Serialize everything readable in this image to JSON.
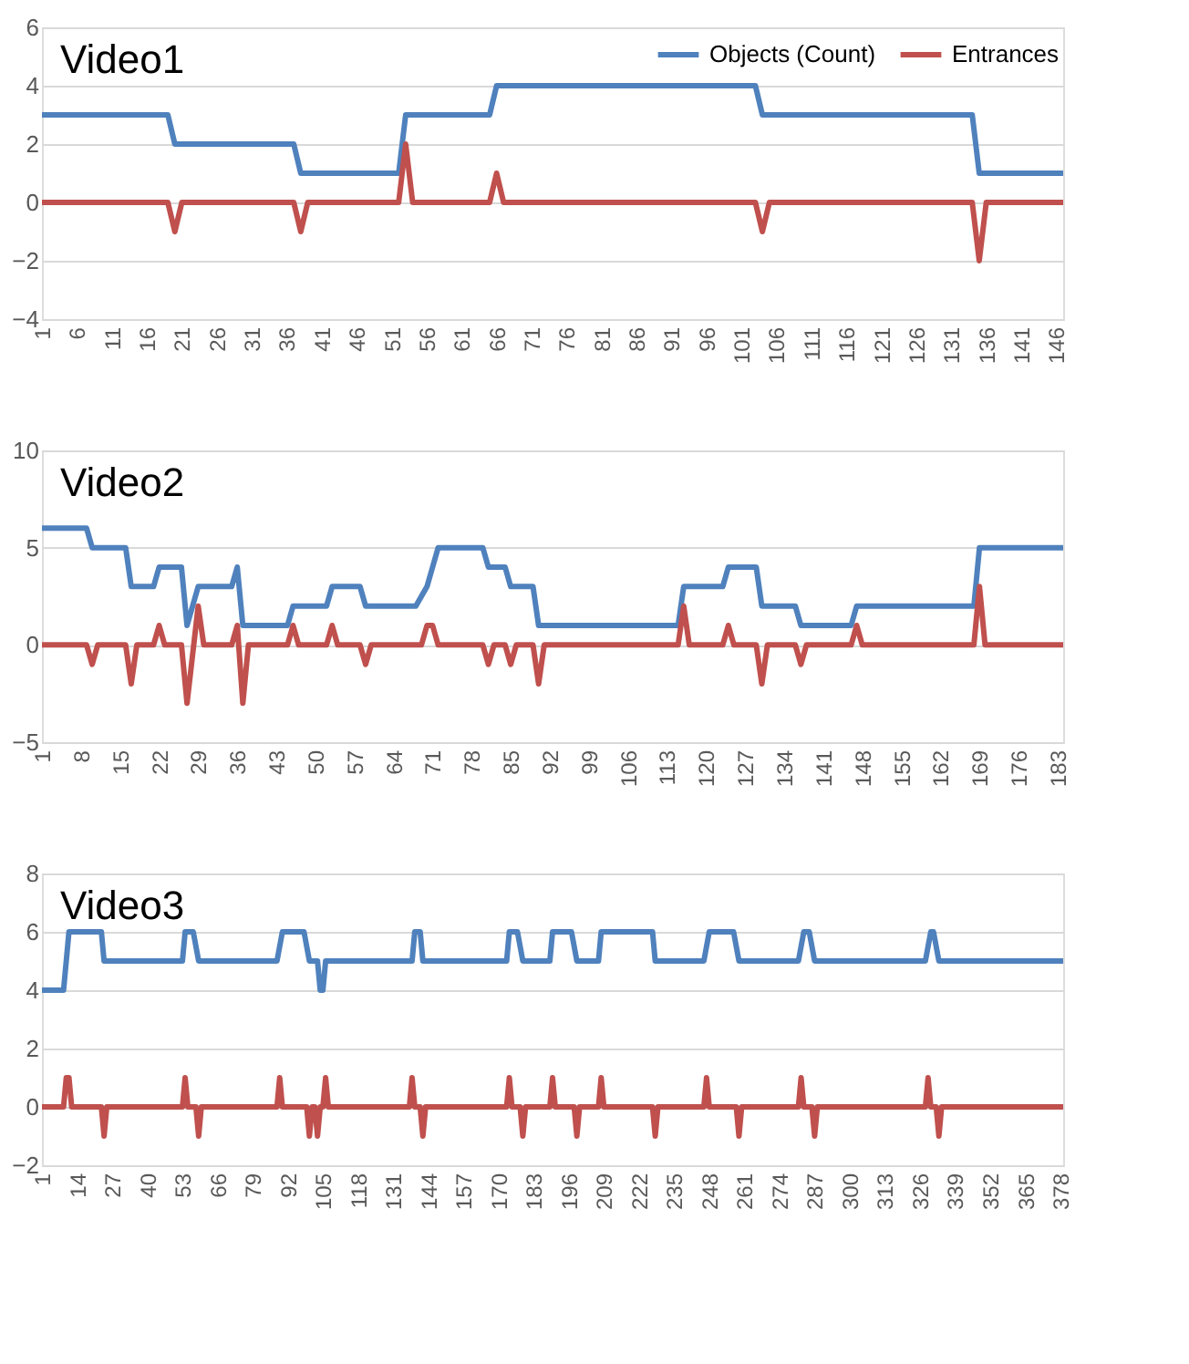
{
  "chart_data": [
    {
      "type": "line",
      "title": "Video1",
      "xlim": [
        1,
        147
      ],
      "xticks": [
        1,
        6,
        11,
        16,
        21,
        26,
        31,
        36,
        41,
        46,
        51,
        56,
        61,
        66,
        71,
        76,
        81,
        86,
        91,
        96,
        101,
        106,
        111,
        116,
        121,
        126,
        131,
        136,
        141,
        146
      ],
      "ylim": [
        -4,
        6
      ],
      "yticks": [
        -4,
        -2,
        0,
        2,
        4,
        6
      ],
      "grid": "y",
      "legend": "top right",
      "marker": "none",
      "line_style": "solid",
      "series": [
        {
          "name": "Objects (Count)",
          "color": "#4f81bd",
          "x": [
            1,
            19,
            20,
            37,
            38,
            52,
            53,
            65,
            66,
            103,
            104,
            134,
            135,
            147
          ],
          "values": [
            3,
            3,
            2,
            2,
            1,
            1,
            3,
            3,
            4,
            4,
            3,
            3,
            1,
            1
          ]
        },
        {
          "name": "Entrances",
          "color": "#c0504d",
          "x": [
            1,
            19,
            20,
            21,
            37,
            38,
            39,
            52,
            53,
            54,
            65,
            66,
            67,
            103,
            104,
            105,
            134,
            135,
            136,
            147
          ],
          "values": [
            0,
            0,
            -1,
            0,
            0,
            -1,
            0,
            0,
            2,
            0,
            0,
            1,
            0,
            0,
            -1,
            0,
            0,
            -2,
            0,
            0
          ]
        }
      ]
    },
    {
      "type": "line",
      "title": "Video2",
      "xlim": [
        1,
        184
      ],
      "xticks": [
        1,
        8,
        15,
        22,
        29,
        36,
        43,
        50,
        57,
        64,
        71,
        78,
        85,
        92,
        99,
        106,
        113,
        120,
        127,
        134,
        141,
        148,
        155,
        162,
        169,
        176,
        183
      ],
      "ylim": [
        -5,
        10
      ],
      "yticks": [
        -5,
        0,
        5,
        10
      ],
      "grid": "y",
      "legend": "top right",
      "marker": "none",
      "line_style": "solid",
      "series": [
        {
          "name": "Objects (Count)",
          "color": "#4f81bd",
          "x": [
            1,
            9,
            10,
            16,
            17,
            21,
            22,
            26,
            27,
            29,
            35,
            36,
            37,
            45,
            46,
            52,
            53,
            58,
            59,
            68,
            70,
            71,
            72,
            80,
            81,
            84,
            85,
            89,
            90,
            115,
            116,
            123,
            124,
            129,
            130,
            136,
            137,
            146,
            147,
            168,
            169,
            184
          ],
          "values": [
            6,
            6,
            5,
            5,
            3,
            3,
            4,
            4,
            1,
            3,
            3,
            4,
            1,
            1,
            2,
            2,
            3,
            3,
            2,
            2,
            3,
            4,
            5,
            5,
            4,
            4,
            3,
            3,
            1,
            1,
            3,
            3,
            4,
            4,
            2,
            2,
            1,
            1,
            2,
            2,
            5,
            5
          ]
        },
        {
          "name": "Entrances",
          "color": "#c0504d",
          "x": [
            1,
            9,
            10,
            11,
            16,
            17,
            18,
            21,
            22,
            23,
            26,
            27,
            29,
            30,
            35,
            36,
            37,
            38,
            45,
            46,
            47,
            52,
            53,
            54,
            58,
            59,
            60,
            69,
            70,
            71,
            72,
            80,
            81,
            82,
            84,
            85,
            86,
            89,
            90,
            91,
            115,
            116,
            117,
            123,
            124,
            125,
            129,
            130,
            131,
            136,
            137,
            138,
            146,
            147,
            148,
            168,
            169,
            170,
            184
          ],
          "values": [
            0,
            0,
            -1,
            0,
            0,
            -2,
            0,
            0,
            1,
            0,
            0,
            -3,
            2,
            0,
            0,
            1,
            -3,
            0,
            0,
            1,
            0,
            0,
            1,
            0,
            0,
            -1,
            0,
            0,
            1,
            1,
            0,
            0,
            -1,
            0,
            0,
            -1,
            0,
            0,
            -2,
            0,
            0,
            2,
            0,
            0,
            1,
            0,
            0,
            -2,
            0,
            0,
            -1,
            0,
            0,
            1,
            0,
            0,
            3,
            0,
            0
          ]
        }
      ]
    },
    {
      "type": "line",
      "title": "Video3",
      "xlim": [
        1,
        379
      ],
      "xticks": [
        1,
        14,
        27,
        40,
        53,
        66,
        79,
        92,
        105,
        118,
        131,
        144,
        157,
        170,
        183,
        196,
        209,
        222,
        235,
        248,
        261,
        274,
        287,
        300,
        313,
        326,
        339,
        352,
        365,
        378
      ],
      "ylim": [
        -2,
        8
      ],
      "yticks": [
        -2,
        0,
        2,
        4,
        6,
        8
      ],
      "grid": "y",
      "legend": "top right",
      "marker": "none",
      "line_style": "solid",
      "series": [
        {
          "name": "Objects (Count)",
          "color": "#4f81bd",
          "x": [
            1,
            9,
            11,
            23,
            24,
            53,
            54,
            57,
            59,
            88,
            90,
            98,
            100,
            103,
            104,
            105,
            106,
            138,
            139,
            141,
            142,
            173,
            174,
            177,
            179,
            189,
            190,
            197,
            199,
            207,
            208,
            227,
            228,
            246,
            248,
            257,
            259,
            281,
            283,
            285,
            287,
            328,
            330,
            331,
            333,
            379
          ],
          "values": [
            4,
            4,
            6,
            6,
            5,
            5,
            6,
            6,
            5,
            5,
            6,
            6,
            5,
            5,
            4,
            4,
            5,
            5,
            6,
            6,
            5,
            5,
            6,
            6,
            5,
            5,
            6,
            6,
            5,
            5,
            6,
            6,
            5,
            5,
            6,
            6,
            5,
            5,
            6,
            6,
            5,
            5,
            6,
            6,
            5,
            5
          ]
        },
        {
          "name": "Entrances",
          "color": "#c0504d",
          "x": [
            1,
            9,
            10,
            11,
            12,
            23,
            24,
            25,
            53,
            54,
            55,
            58,
            59,
            60,
            88,
            89,
            90,
            99,
            100,
            101,
            102,
            103,
            104,
            105,
            106,
            107,
            137,
            138,
            139,
            141,
            142,
            143,
            173,
            174,
            175,
            178,
            179,
            180,
            189,
            190,
            191,
            198,
            199,
            200,
            207,
            208,
            209,
            227,
            228,
            229,
            246,
            247,
            248,
            258,
            259,
            260,
            281,
            282,
            283,
            286,
            287,
            288,
            328,
            329,
            330,
            332,
            333,
            334,
            379
          ],
          "values": [
            0,
            0,
            1,
            1,
            0,
            0,
            -1,
            0,
            0,
            1,
            0,
            0,
            -1,
            0,
            0,
            1,
            0,
            0,
            -1,
            0,
            0,
            -1,
            0,
            0,
            1,
            0,
            0,
            1,
            0,
            0,
            -1,
            0,
            0,
            1,
            0,
            0,
            -1,
            0,
            0,
            1,
            0,
            0,
            -1,
            0,
            0,
            1,
            0,
            0,
            -1,
            0,
            0,
            1,
            0,
            0,
            -1,
            0,
            0,
            1,
            0,
            0,
            -1,
            0,
            0,
            1,
            0,
            0,
            -1,
            0,
            0
          ]
        }
      ]
    }
  ]
}
